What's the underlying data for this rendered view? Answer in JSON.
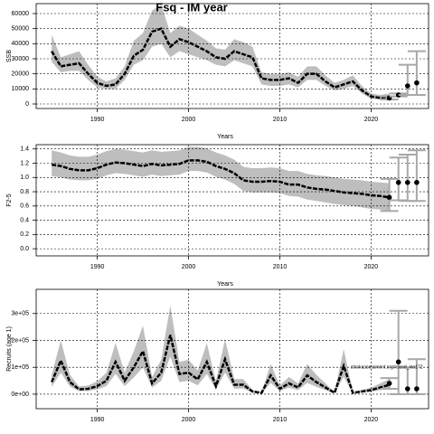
{
  "chart_data": [
    {
      "type": "band-line",
      "title": "Fsq - IM year",
      "xlabel": "Years",
      "ylabel": "SSB",
      "x": [
        1985,
        1986,
        1987,
        1988,
        1989,
        1990,
        1991,
        1992,
        1993,
        1994,
        1995,
        1996,
        1997,
        1998,
        1999,
        2000,
        2001,
        2002,
        2003,
        2004,
        2005,
        2006,
        2007,
        2008,
        2009,
        2010,
        2011,
        2012,
        2013,
        2014,
        2015,
        2016,
        2017,
        2018,
        2019,
        2020,
        2021,
        2022
      ],
      "values": [
        35000,
        25000,
        26000,
        27000,
        20000,
        14000,
        12000,
        13000,
        20000,
        32000,
        36000,
        48000,
        50000,
        38000,
        43000,
        41000,
        38000,
        35000,
        31000,
        30000,
        35000,
        33000,
        31000,
        17000,
        16000,
        16000,
        17000,
        14000,
        20000,
        20000,
        15000,
        11000,
        13000,
        15000,
        9000,
        5000,
        4000,
        5000
      ],
      "lower": [
        28000,
        21000,
        22000,
        22000,
        16000,
        11000,
        10000,
        10000,
        16000,
        26000,
        29000,
        38000,
        40000,
        31000,
        35000,
        33000,
        31000,
        29000,
        26000,
        25000,
        29000,
        27000,
        25000,
        13000,
        12000,
        12000,
        13000,
        11000,
        16000,
        16000,
        12000,
        9000,
        10000,
        12000,
        7000,
        3500,
        3000,
        3500
      ],
      "upper": [
        46000,
        31000,
        33000,
        35000,
        26000,
        18000,
        15000,
        17000,
        25000,
        42000,
        47000,
        62000,
        66000,
        47000,
        52000,
        50000,
        46000,
        42000,
        37000,
        36000,
        43000,
        41000,
        38000,
        21000,
        20000,
        20000,
        21000,
        18000,
        25000,
        25000,
        19000,
        14000,
        16000,
        19000,
        12000,
        7000,
        6000,
        7000
      ],
      "projection": {
        "x": [
          2022,
          2023,
          2024,
          2025
        ],
        "values": [
          4000,
          6000,
          12000,
          14000
        ],
        "low": [
          3000,
          5000,
          6000,
          6000
        ],
        "high": [
          5000,
          7000,
          26000,
          35000
        ]
      },
      "line_color": "#000000",
      "band_color": "#bebebe",
      "bar_color": "#a8a8a8",
      "xlim": [
        1983.3,
        2026.3
      ],
      "xticks": [
        1990,
        2000,
        2010,
        2020
      ],
      "ylim": [
        -3000,
        66600
      ],
      "yticks": [
        0,
        10000,
        20000,
        30000,
        40000,
        50000,
        60000
      ],
      "grid": true
    },
    {
      "type": "band-line",
      "xlabel": "Years",
      "ylabel": "F2-5",
      "x": [
        1985,
        1986,
        1987,
        1988,
        1989,
        1990,
        1991,
        1992,
        1993,
        1994,
        1995,
        1996,
        1997,
        1998,
        1999,
        2000,
        2001,
        2002,
        2003,
        2004,
        2005,
        2006,
        2007,
        2008,
        2009,
        2010,
        2011,
        2012,
        2013,
        2014,
        2015,
        2016,
        2017,
        2018,
        2019,
        2020,
        2021,
        2022
      ],
      "values": [
        1.18,
        1.16,
        1.12,
        1.1,
        1.1,
        1.13,
        1.18,
        1.21,
        1.2,
        1.18,
        1.16,
        1.19,
        1.17,
        1.18,
        1.19,
        1.24,
        1.24,
        1.22,
        1.16,
        1.12,
        1.06,
        0.96,
        0.94,
        0.94,
        0.95,
        0.94,
        0.9,
        0.9,
        0.86,
        0.84,
        0.83,
        0.81,
        0.79,
        0.78,
        0.77,
        0.75,
        0.74,
        0.72
      ],
      "lower": [
        1.02,
        1.0,
        0.97,
        0.96,
        0.96,
        0.98,
        1.03,
        1.06,
        1.05,
        1.03,
        1.01,
        1.04,
        1.02,
        1.03,
        1.04,
        1.09,
        1.09,
        1.07,
        1.01,
        0.97,
        0.91,
        0.81,
        0.79,
        0.79,
        0.79,
        0.78,
        0.74,
        0.73,
        0.69,
        0.67,
        0.65,
        0.63,
        0.61,
        0.6,
        0.58,
        0.56,
        0.55,
        0.53
      ],
      "upper": [
        1.38,
        1.35,
        1.31,
        1.29,
        1.29,
        1.32,
        1.37,
        1.4,
        1.39,
        1.37,
        1.35,
        1.38,
        1.36,
        1.37,
        1.38,
        1.43,
        1.43,
        1.41,
        1.35,
        1.31,
        1.25,
        1.15,
        1.13,
        1.13,
        1.14,
        1.13,
        1.09,
        1.09,
        1.05,
        1.03,
        1.02,
        1.0,
        0.98,
        0.97,
        0.96,
        0.94,
        0.93,
        0.92
      ],
      "projection": {
        "x": [
          2022,
          2023,
          2024,
          2025
        ],
        "values": [
          0.72,
          0.93,
          0.93,
          0.93
        ],
        "low": [
          0.53,
          0.68,
          0.67,
          0.67
        ],
        "high": [
          0.98,
          1.28,
          1.32,
          1.38
        ]
      },
      "line_color": "#000000",
      "band_color": "#bebebe",
      "bar_color": "#a8a8a8",
      "xlim": [
        1983.3,
        2026.3
      ],
      "xticks": [
        1990,
        2000,
        2010,
        2020
      ],
      "ylim": [
        -0.1,
        1.46
      ],
      "yticks": [
        {
          "value": 0,
          "label": "0.0"
        },
        0.2,
        0.4,
        0.6,
        0.8,
        {
          "value": 1,
          "label": "1.0"
        },
        1.2,
        1.4
      ],
      "grid": true
    },
    {
      "type": "band-line",
      "xlabel": "Years",
      "ylabel": "Recruits (age 1)",
      "annotation": "stockassessment.org/nscod_ino172",
      "x": [
        1985,
        1986,
        1987,
        1988,
        1989,
        1990,
        1991,
        1992,
        1993,
        1994,
        1995,
        1996,
        1997,
        1998,
        1999,
        2000,
        2001,
        2002,
        2003,
        2004,
        2005,
        2006,
        2007,
        2008,
        2009,
        2010,
        2011,
        2012,
        2013,
        2014,
        2015,
        2016,
        2017,
        2018,
        2019,
        2020,
        2021,
        2022
      ],
      "values": [
        45000,
        125000,
        45000,
        18000,
        20000,
        30000,
        50000,
        120000,
        50000,
        100000,
        160000,
        40000,
        80000,
        220000,
        75000,
        80000,
        55000,
        120000,
        30000,
        130000,
        35000,
        35000,
        10000,
        5000,
        70000,
        20000,
        40000,
        25000,
        70000,
        45000,
        25000,
        5000,
        105000,
        5000,
        10000,
        15000,
        25000,
        35000
      ],
      "lower": [
        27000,
        80000,
        28000,
        11000,
        12000,
        18000,
        30000,
        75000,
        30000,
        62000,
        100000,
        24000,
        50000,
        140000,
        45000,
        50000,
        33000,
        75000,
        18000,
        80000,
        21000,
        21000,
        6000,
        3000,
        42000,
        12000,
        24000,
        15000,
        42000,
        27000,
        15000,
        3000,
        65000,
        3000,
        6000,
        9000,
        15000,
        21000
      ],
      "upper": [
        72000,
        200000,
        72000,
        29000,
        32000,
        48000,
        80000,
        190000,
        80000,
        160000,
        255000,
        64000,
        128000,
        330000,
        120000,
        128000,
        88000,
        190000,
        48000,
        205000,
        56000,
        56000,
        16000,
        8000,
        112000,
        32000,
        64000,
        40000,
        112000,
        72000,
        40000,
        8000,
        168000,
        8000,
        16000,
        24000,
        40000,
        56000
      ],
      "projection": {
        "x": [
          2022,
          2023,
          2024,
          2025
        ],
        "values": [
          40000,
          120000,
          20000,
          20000
        ],
        "low": [
          20000,
          0,
          0,
          0
        ],
        "high": [
          60000,
          310000,
          100000,
          130000
        ]
      },
      "line_color": "#000000",
      "band_color": "#bebebe",
      "bar_color": "#a8a8a8",
      "xlim": [
        1983.3,
        2026.3
      ],
      "xticks": [
        1990,
        2000,
        2010,
        2020
      ],
      "ylim": [
        -54000,
        390000
      ],
      "yticks": [
        {
          "value": 0,
          "label": "0e+00"
        },
        {
          "value": 100000,
          "label": "1e+05"
        },
        {
          "value": 200000,
          "label": "2e+05"
        },
        {
          "value": 300000,
          "label": "3e+05"
        }
      ],
      "grid": true
    }
  ]
}
